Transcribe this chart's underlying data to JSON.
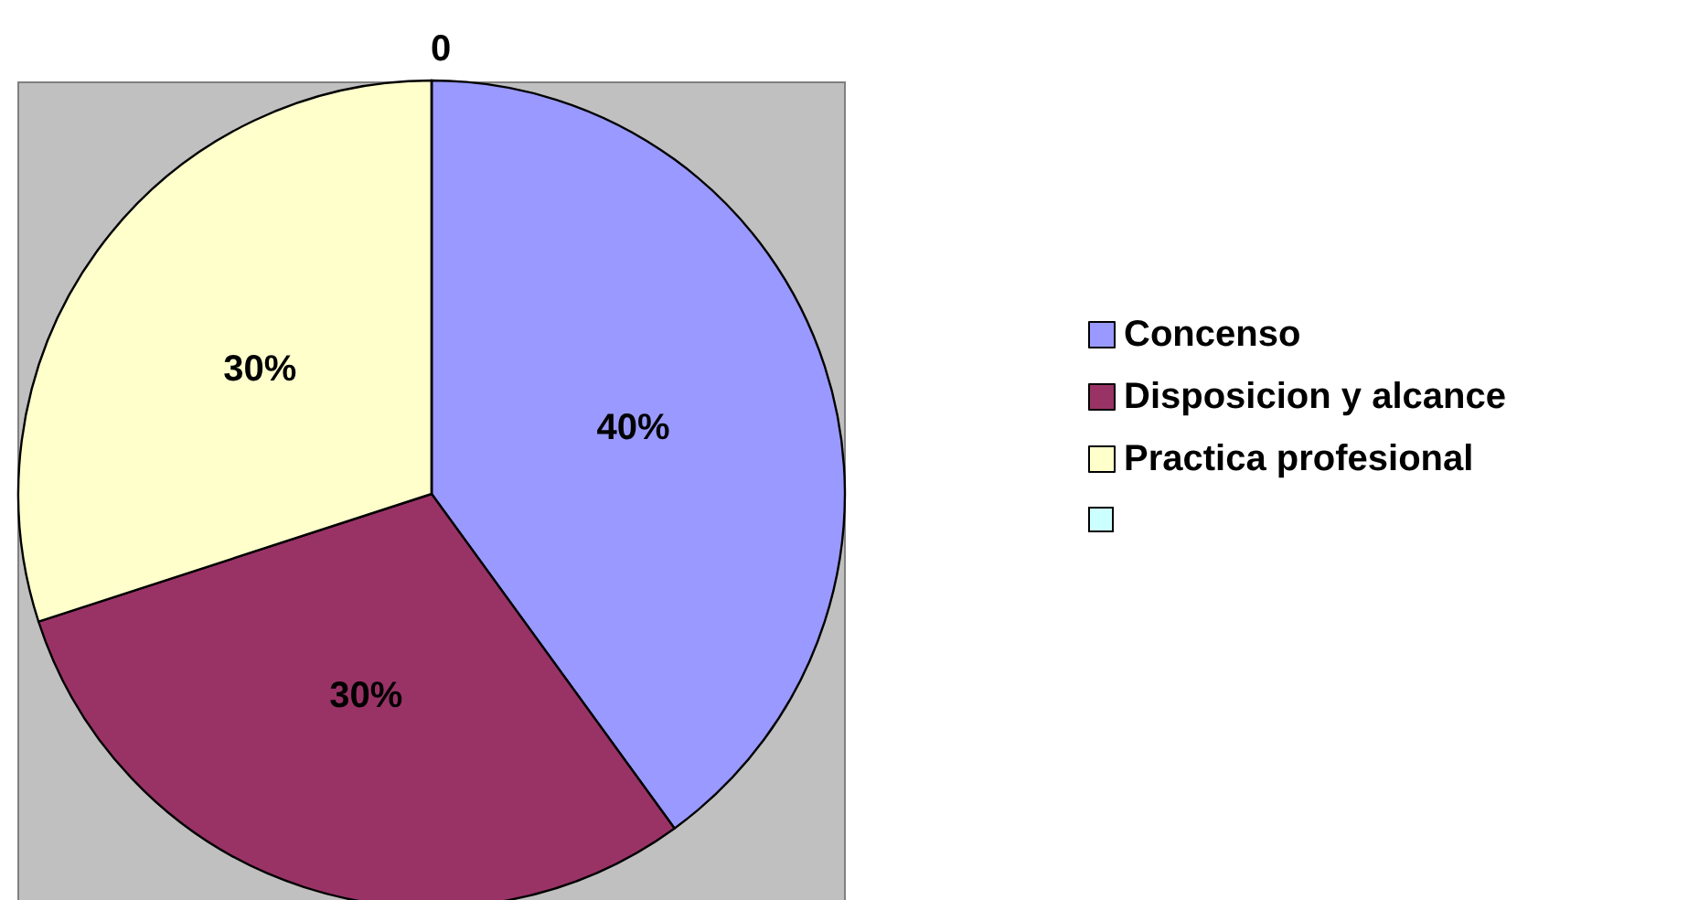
{
  "chart_data": {
    "type": "pie",
    "title": "0",
    "categories": [
      "Concenso",
      "Disposicion y alcance",
      "Practica profesional",
      null
    ],
    "values": [
      40,
      30,
      30,
      0
    ],
    "colors": [
      "#9999ff",
      "#993366",
      "#ffffcc",
      "#ccffff"
    ],
    "value_labels": [
      "40%",
      "30%",
      "30%",
      null
    ],
    "legend": "right"
  }
}
